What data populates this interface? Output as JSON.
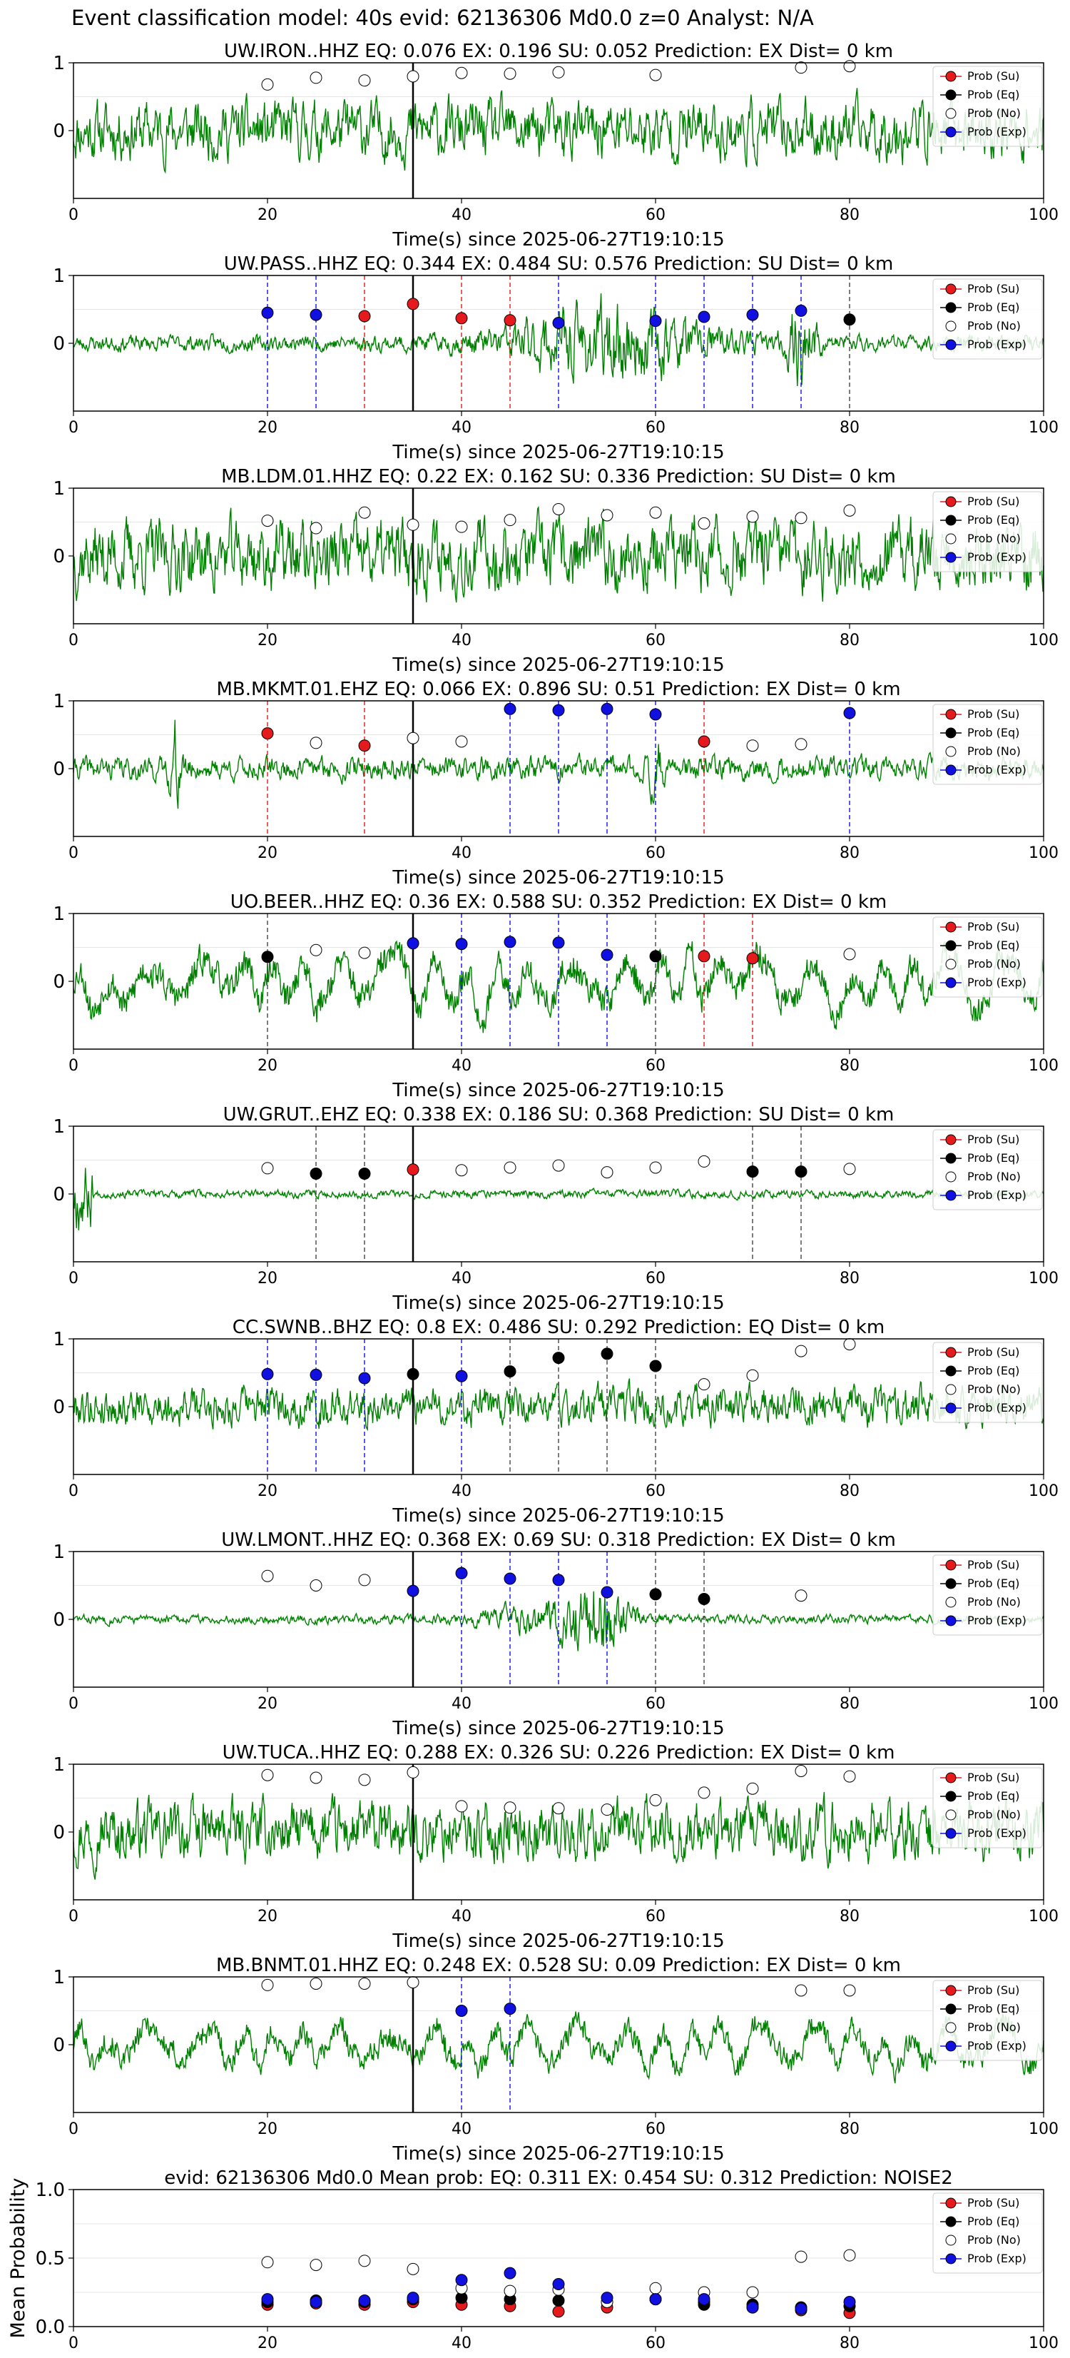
{
  "figure": {
    "title": "Event classification model: 40s evid: 62136306 Md0.0 z=0 Analyst: N/A"
  },
  "legend": {
    "entries": [
      {
        "label": "Prob (Su)",
        "color": "#e41a1c",
        "fill": true
      },
      {
        "label": "Prob (Eq)",
        "color": "#000000",
        "fill": true
      },
      {
        "label": "Prob (No)",
        "color": "#ffffff",
        "fill": false
      },
      {
        "label": "Prob (Exp)",
        "color": "#1010e0",
        "fill": true
      }
    ]
  },
  "colors": {
    "waveform": "#008000",
    "su": "#e41a1c",
    "eq": "#000000",
    "no": "#ffffff",
    "exp": "#1010e0"
  },
  "chart_data": [
    {
      "type": "line",
      "title": "UW.IRON..HHZ   EQ: 0.076  EX: 0.196  SU: 0.052   Prediction: EX    Dist= 0 km",
      "xlabel": "Time(s) since 2025-06-27T19:10:15",
      "xlim": [
        0,
        100
      ],
      "ylim": [
        -1,
        1
      ],
      "xticks": [
        "0",
        "20",
        "40",
        "60",
        "80",
        "100"
      ],
      "yticks": [
        "0",
        "1"
      ],
      "pick_time": 35,
      "wave": {
        "style": "noisy",
        "amp": 0.45,
        "seed": 11
      },
      "markers": [
        {
          "t": 20,
          "p": 0.68,
          "class": "no"
        },
        {
          "t": 25,
          "p": 0.78,
          "class": "no"
        },
        {
          "t": 30,
          "p": 0.74,
          "class": "no"
        },
        {
          "t": 35,
          "p": 0.8,
          "class": "no"
        },
        {
          "t": 40,
          "p": 0.85,
          "class": "no"
        },
        {
          "t": 45,
          "p": 0.84,
          "class": "no"
        },
        {
          "t": 50,
          "p": 0.86,
          "class": "no"
        },
        {
          "t": 60,
          "p": 0.82,
          "class": "no"
        },
        {
          "t": 75,
          "p": 0.93,
          "class": "no"
        },
        {
          "t": 80,
          "p": 0.95,
          "class": "no"
        }
      ]
    },
    {
      "type": "line",
      "title": "UW.PASS..HHZ   EQ: 0.344  EX: 0.484  SU: 0.576   Prediction: SU    Dist= 0 km",
      "xlabel": "Time(s) since 2025-06-27T19:10:15",
      "xlim": [
        0,
        100
      ],
      "ylim": [
        -1,
        1
      ],
      "xticks": [
        "0",
        "20",
        "40",
        "60",
        "80",
        "100"
      ],
      "yticks": [
        "0",
        "1"
      ],
      "pick_time": 35,
      "wave": {
        "style": "burst",
        "amp": 0.35,
        "seed": 23
      },
      "markers": [
        {
          "t": 20,
          "p": 0.45,
          "class": "exp"
        },
        {
          "t": 25,
          "p": 0.42,
          "class": "exp"
        },
        {
          "t": 30,
          "p": 0.4,
          "class": "su"
        },
        {
          "t": 35,
          "p": 0.58,
          "class": "su"
        },
        {
          "t": 40,
          "p": 0.37,
          "class": "su"
        },
        {
          "t": 45,
          "p": 0.34,
          "class": "su"
        },
        {
          "t": 50,
          "p": 0.3,
          "class": "exp"
        },
        {
          "t": 60,
          "p": 0.33,
          "class": "exp"
        },
        {
          "t": 65,
          "p": 0.39,
          "class": "exp"
        },
        {
          "t": 70,
          "p": 0.42,
          "class": "exp"
        },
        {
          "t": 75,
          "p": 0.48,
          "class": "exp"
        },
        {
          "t": 80,
          "p": 0.35,
          "class": "eq"
        }
      ]
    },
    {
      "type": "line",
      "title": "MB.LDM.01.HHZ   EQ: 0.22  EX: 0.162  SU: 0.336   Prediction: SU    Dist= 0 km",
      "xlabel": "Time(s) since 2025-06-27T19:10:15",
      "xlim": [
        0,
        100
      ],
      "ylim": [
        -1,
        1
      ],
      "xticks": [
        "0",
        "20",
        "40",
        "60",
        "80",
        "100"
      ],
      "yticks": [
        "0",
        "1"
      ],
      "pick_time": 35,
      "wave": {
        "style": "noisy",
        "amp": 0.55,
        "seed": 37
      },
      "markers": [
        {
          "t": 20,
          "p": 0.52,
          "class": "no"
        },
        {
          "t": 25,
          "p": 0.41,
          "class": "no"
        },
        {
          "t": 30,
          "p": 0.64,
          "class": "no"
        },
        {
          "t": 35,
          "p": 0.46,
          "class": "no"
        },
        {
          "t": 40,
          "p": 0.43,
          "class": "no"
        },
        {
          "t": 45,
          "p": 0.53,
          "class": "no"
        },
        {
          "t": 50,
          "p": 0.69,
          "class": "no"
        },
        {
          "t": 55,
          "p": 0.6,
          "class": "no"
        },
        {
          "t": 60,
          "p": 0.64,
          "class": "no"
        },
        {
          "t": 65,
          "p": 0.48,
          "class": "no"
        },
        {
          "t": 70,
          "p": 0.58,
          "class": "no"
        },
        {
          "t": 75,
          "p": 0.56,
          "class": "no"
        },
        {
          "t": 80,
          "p": 0.67,
          "class": "no"
        }
      ]
    },
    {
      "type": "line",
      "title": "MB.MKMT.01.EHZ   EQ: 0.066  EX: 0.896  SU: 0.51   Prediction: EX    Dist= 0 km",
      "xlabel": "Time(s) since 2025-06-27T19:10:15",
      "xlim": [
        0,
        100
      ],
      "ylim": [
        -1,
        1
      ],
      "xticks": [
        "0",
        "20",
        "40",
        "60",
        "80",
        "100"
      ],
      "yticks": [
        "0",
        "1"
      ],
      "pick_time": 35,
      "wave": {
        "style": "quiet",
        "amp": 0.25,
        "seed": 41
      },
      "markers": [
        {
          "t": 20,
          "p": 0.52,
          "class": "su"
        },
        {
          "t": 25,
          "p": 0.38,
          "class": "no"
        },
        {
          "t": 30,
          "p": 0.34,
          "class": "su"
        },
        {
          "t": 35,
          "p": 0.45,
          "class": "no"
        },
        {
          "t": 40,
          "p": 0.4,
          "class": "no"
        },
        {
          "t": 45,
          "p": 0.88,
          "class": "exp"
        },
        {
          "t": 50,
          "p": 0.86,
          "class": "exp"
        },
        {
          "t": 55,
          "p": 0.88,
          "class": "exp"
        },
        {
          "t": 60,
          "p": 0.8,
          "class": "exp"
        },
        {
          "t": 65,
          "p": 0.4,
          "class": "su"
        },
        {
          "t": 70,
          "p": 0.34,
          "class": "no"
        },
        {
          "t": 75,
          "p": 0.36,
          "class": "no"
        },
        {
          "t": 80,
          "p": 0.82,
          "class": "exp"
        }
      ]
    },
    {
      "type": "line",
      "title": "UO.BEER..HHZ   EQ: 0.36  EX: 0.588  SU: 0.352   Prediction: EX    Dist= 0 km",
      "xlabel": "Time(s) since 2025-06-27T19:10:15",
      "xlim": [
        0,
        100
      ],
      "ylim": [
        -1,
        1
      ],
      "xticks": [
        "0",
        "20",
        "40",
        "60",
        "80",
        "100"
      ],
      "yticks": [
        "0",
        "1"
      ],
      "pick_time": 35,
      "wave": {
        "style": "wavy",
        "amp": 0.5,
        "seed": 53
      },
      "markers": [
        {
          "t": 20,
          "p": 0.36,
          "class": "eq"
        },
        {
          "t": 25,
          "p": 0.46,
          "class": "no"
        },
        {
          "t": 30,
          "p": 0.42,
          "class": "no"
        },
        {
          "t": 35,
          "p": 0.56,
          "class": "exp"
        },
        {
          "t": 40,
          "p": 0.55,
          "class": "exp"
        },
        {
          "t": 45,
          "p": 0.58,
          "class": "exp"
        },
        {
          "t": 50,
          "p": 0.57,
          "class": "exp"
        },
        {
          "t": 55,
          "p": 0.39,
          "class": "exp"
        },
        {
          "t": 60,
          "p": 0.37,
          "class": "eq"
        },
        {
          "t": 65,
          "p": 0.37,
          "class": "su"
        },
        {
          "t": 70,
          "p": 0.34,
          "class": "su"
        },
        {
          "t": 80,
          "p": 0.4,
          "class": "no"
        }
      ]
    },
    {
      "type": "line",
      "title": "UW.GRUT..EHZ   EQ: 0.338  EX: 0.186  SU: 0.368   Prediction: SU    Dist= 0 km",
      "xlabel": "Time(s) since 2025-06-27T19:10:15",
      "xlim": [
        0,
        100
      ],
      "ylim": [
        -1,
        1
      ],
      "xticks": [
        "0",
        "20",
        "40",
        "60",
        "80",
        "100"
      ],
      "yticks": [
        "0",
        "1"
      ],
      "pick_time": 35,
      "wave": {
        "style": "flat",
        "amp": 0.12,
        "seed": 67
      },
      "markers": [
        {
          "t": 20,
          "p": 0.38,
          "class": "no"
        },
        {
          "t": 25,
          "p": 0.3,
          "class": "eq"
        },
        {
          "t": 30,
          "p": 0.3,
          "class": "eq"
        },
        {
          "t": 35,
          "p": 0.36,
          "class": "su"
        },
        {
          "t": 40,
          "p": 0.35,
          "class": "no"
        },
        {
          "t": 45,
          "p": 0.39,
          "class": "no"
        },
        {
          "t": 50,
          "p": 0.42,
          "class": "no"
        },
        {
          "t": 55,
          "p": 0.32,
          "class": "no"
        },
        {
          "t": 60,
          "p": 0.39,
          "class": "no"
        },
        {
          "t": 65,
          "p": 0.48,
          "class": "no"
        },
        {
          "t": 70,
          "p": 0.33,
          "class": "eq"
        },
        {
          "t": 75,
          "p": 0.33,
          "class": "eq"
        },
        {
          "t": 80,
          "p": 0.37,
          "class": "no"
        }
      ]
    },
    {
      "type": "line",
      "title": "CC.SWNB..BHZ   EQ: 0.8  EX: 0.486  SU: 0.292   Prediction: EQ    Dist= 0 km",
      "xlabel": "Time(s) since 2025-06-27T19:10:15",
      "xlim": [
        0,
        100
      ],
      "ylim": [
        -1,
        1
      ],
      "xticks": [
        "0",
        "20",
        "40",
        "60",
        "80",
        "100"
      ],
      "yticks": [
        "0",
        "1"
      ],
      "pick_time": 35,
      "wave": {
        "style": "noisy",
        "amp": 0.3,
        "seed": 79
      },
      "markers": [
        {
          "t": 20,
          "p": 0.48,
          "class": "exp"
        },
        {
          "t": 25,
          "p": 0.47,
          "class": "exp"
        },
        {
          "t": 30,
          "p": 0.42,
          "class": "exp"
        },
        {
          "t": 35,
          "p": 0.48,
          "class": "eq"
        },
        {
          "t": 40,
          "p": 0.45,
          "class": "exp"
        },
        {
          "t": 45,
          "p": 0.52,
          "class": "eq"
        },
        {
          "t": 50,
          "p": 0.72,
          "class": "eq"
        },
        {
          "t": 55,
          "p": 0.78,
          "class": "eq"
        },
        {
          "t": 60,
          "p": 0.6,
          "class": "eq"
        },
        {
          "t": 65,
          "p": 0.33,
          "class": "no"
        },
        {
          "t": 70,
          "p": 0.46,
          "class": "no"
        },
        {
          "t": 75,
          "p": 0.82,
          "class": "no"
        },
        {
          "t": 80,
          "p": 0.92,
          "class": "no"
        }
      ]
    },
    {
      "type": "line",
      "title": "UW.LMONT..HHZ   EQ: 0.368  EX: 0.69  SU: 0.318   Prediction: EX    Dist= 0 km",
      "xlabel": "Time(s) since 2025-06-27T19:10:15",
      "xlim": [
        0,
        100
      ],
      "ylim": [
        -1,
        1
      ],
      "xticks": [
        "0",
        "20",
        "40",
        "60",
        "80",
        "100"
      ],
      "yticks": [
        "0",
        "1"
      ],
      "pick_time": 35,
      "wave": {
        "style": "late-burst",
        "amp": 0.15,
        "seed": 83
      },
      "markers": [
        {
          "t": 20,
          "p": 0.64,
          "class": "no"
        },
        {
          "t": 25,
          "p": 0.5,
          "class": "no"
        },
        {
          "t": 30,
          "p": 0.58,
          "class": "no"
        },
        {
          "t": 35,
          "p": 0.42,
          "class": "exp"
        },
        {
          "t": 40,
          "p": 0.68,
          "class": "exp"
        },
        {
          "t": 45,
          "p": 0.6,
          "class": "exp"
        },
        {
          "t": 50,
          "p": 0.58,
          "class": "exp"
        },
        {
          "t": 55,
          "p": 0.4,
          "class": "exp"
        },
        {
          "t": 60,
          "p": 0.37,
          "class": "eq"
        },
        {
          "t": 65,
          "p": 0.3,
          "class": "eq"
        },
        {
          "t": 75,
          "p": 0.35,
          "class": "no"
        }
      ]
    },
    {
      "type": "line",
      "title": "UW.TUCA..HHZ   EQ: 0.288  EX: 0.326  SU: 0.226   Prediction: EX    Dist= 0 km",
      "xlabel": "Time(s) since 2025-06-27T19:10:15",
      "xlim": [
        0,
        100
      ],
      "ylim": [
        -1,
        1
      ],
      "xticks": [
        "0",
        "20",
        "40",
        "60",
        "80",
        "100"
      ],
      "yticks": [
        "0",
        "1"
      ],
      "pick_time": 35,
      "wave": {
        "style": "noisy",
        "amp": 0.45,
        "seed": 97
      },
      "markers": [
        {
          "t": 20,
          "p": 0.84,
          "class": "no"
        },
        {
          "t": 25,
          "p": 0.8,
          "class": "no"
        },
        {
          "t": 30,
          "p": 0.77,
          "class": "no"
        },
        {
          "t": 35,
          "p": 0.88,
          "class": "no"
        },
        {
          "t": 40,
          "p": 0.38,
          "class": "no"
        },
        {
          "t": 45,
          "p": 0.36,
          "class": "no"
        },
        {
          "t": 50,
          "p": 0.35,
          "class": "no"
        },
        {
          "t": 55,
          "p": 0.33,
          "class": "no"
        },
        {
          "t": 60,
          "p": 0.47,
          "class": "no"
        },
        {
          "t": 65,
          "p": 0.58,
          "class": "no"
        },
        {
          "t": 70,
          "p": 0.64,
          "class": "no"
        },
        {
          "t": 75,
          "p": 0.9,
          "class": "no"
        },
        {
          "t": 80,
          "p": 0.82,
          "class": "no"
        }
      ]
    },
    {
      "type": "line",
      "title": "MB.BNMT.01.HHZ   EQ: 0.248  EX: 0.528  SU: 0.09   Prediction: EX    Dist= 0 km",
      "xlabel": "Time(s) since 2025-06-27T19:10:15",
      "xlim": [
        0,
        100
      ],
      "ylim": [
        -1,
        1
      ],
      "xticks": [
        "0",
        "20",
        "40",
        "60",
        "80",
        "100"
      ],
      "yticks": [
        "0",
        "1"
      ],
      "pick_time": 35,
      "wave": {
        "style": "wavy",
        "amp": 0.4,
        "seed": 101
      },
      "markers": [
        {
          "t": 20,
          "p": 0.88,
          "class": "no"
        },
        {
          "t": 25,
          "p": 0.9,
          "class": "no"
        },
        {
          "t": 30,
          "p": 0.9,
          "class": "no"
        },
        {
          "t": 35,
          "p": 0.92,
          "class": "no"
        },
        {
          "t": 40,
          "p": 0.5,
          "class": "exp"
        },
        {
          "t": 45,
          "p": 0.53,
          "class": "exp"
        },
        {
          "t": 75,
          "p": 0.8,
          "class": "no"
        },
        {
          "t": 80,
          "p": 0.8,
          "class": "no"
        }
      ]
    },
    {
      "type": "scatter",
      "title": "evid: 62136306  Md0.0   Mean prob:   EQ: 0.311  EX: 0.454  SU: 0.312   Prediction: NOISE2",
      "xlabel": "",
      "ylabel": "Mean Probability",
      "xlim": [
        0,
        100
      ],
      "ylim": [
        0,
        1
      ],
      "xticks": [
        "0",
        "20",
        "40",
        "60",
        "80",
        "100"
      ],
      "yticks": [
        "0.0",
        "0.5",
        "1.0"
      ],
      "x": [
        20,
        25,
        30,
        35,
        40,
        45,
        50,
        55,
        60,
        65,
        70,
        75,
        80
      ],
      "series": [
        {
          "name": "Prob (Su)",
          "class": "su",
          "values": [
            0.16,
            0.17,
            0.16,
            0.18,
            0.16,
            0.15,
            0.11,
            0.14,
            0.2,
            0.18,
            0.14,
            0.12,
            0.1
          ]
        },
        {
          "name": "Prob (Eq)",
          "class": "eq",
          "values": [
            0.18,
            0.19,
            0.18,
            0.2,
            0.21,
            0.2,
            0.19,
            0.18,
            0.2,
            0.16,
            0.16,
            0.14,
            0.15
          ]
        },
        {
          "name": "Prob (No)",
          "class": "no",
          "values": [
            0.47,
            0.45,
            0.48,
            0.42,
            0.28,
            0.26,
            0.27,
            0.18,
            0.28,
            0.25,
            0.25,
            0.51,
            0.52
          ]
        },
        {
          "name": "Prob (Exp)",
          "class": "exp",
          "values": [
            0.2,
            0.18,
            0.19,
            0.21,
            0.34,
            0.39,
            0.31,
            0.21,
            0.2,
            0.2,
            0.14,
            0.13,
            0.18
          ]
        }
      ]
    }
  ]
}
